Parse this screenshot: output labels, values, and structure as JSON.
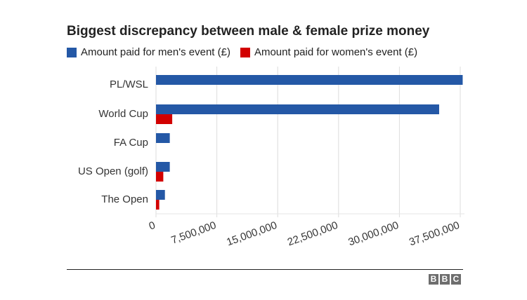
{
  "chart_data": {
    "type": "bar",
    "orientation": "horizontal",
    "title": "Biggest discrepancy between male & female prize money",
    "categories": [
      "PL/WSL",
      "World Cup",
      "FA Cup",
      "US Open (golf)",
      "The Open"
    ],
    "series": [
      {
        "name": "Amount paid for men's event (£)",
        "color": "#2458a6",
        "values": [
          37800000,
          34900000,
          1700000,
          1700000,
          1100000
        ]
      },
      {
        "name": "Amount paid for women's event (£)",
        "color": "#d20000",
        "values": [
          0,
          2000000,
          0,
          900000,
          400000
        ]
      }
    ],
    "xlim": [
      0,
      37500000
    ],
    "xticks": [
      0,
      7500000,
      15000000,
      22500000,
      30000000,
      37500000
    ],
    "xtick_labels": [
      "0",
      "7,500,000",
      "15,000,000",
      "22,500,000",
      "30,000,000",
      "37,500,000"
    ],
    "grid": true,
    "legend": "top-left"
  },
  "logo": [
    "B",
    "B",
    "C"
  ]
}
